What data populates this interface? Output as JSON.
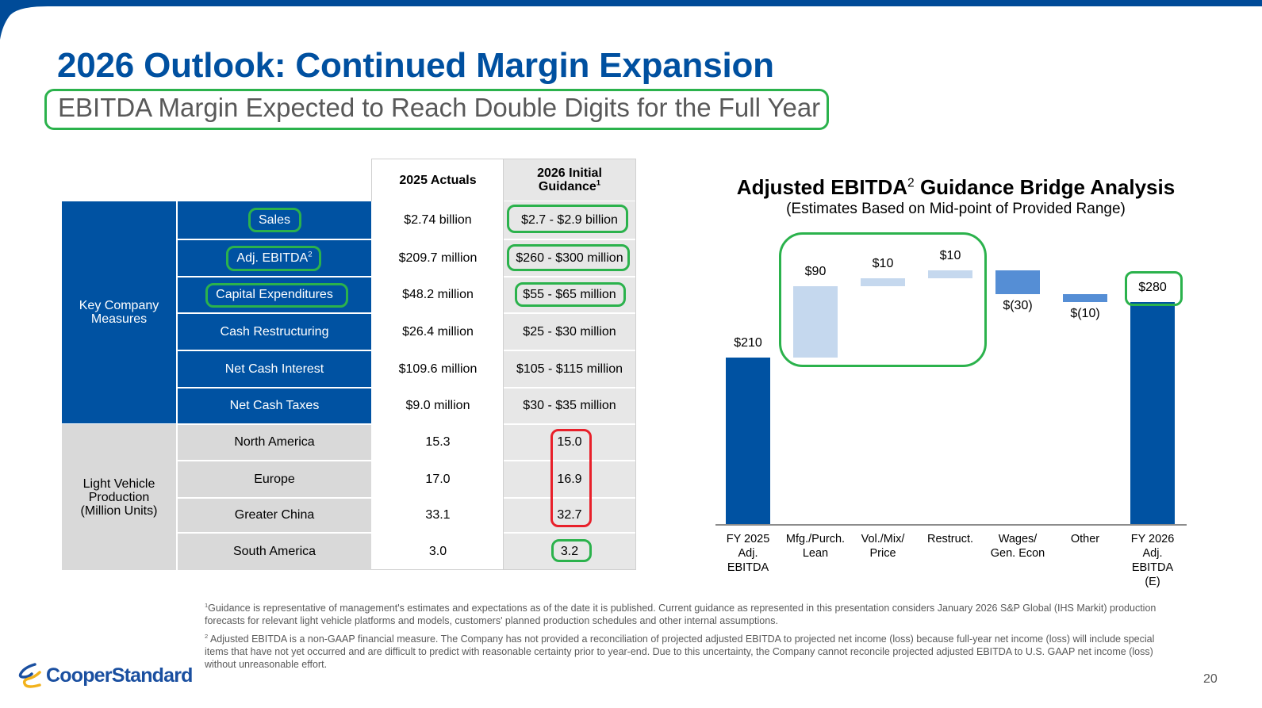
{
  "header": {
    "title": "2026 Outlook: Continued Margin Expansion",
    "subtitle": "EBITDA Margin Expected to Reach Double Digits for the Full Year"
  },
  "colors": {
    "brand_blue": "#0052a2",
    "highlight_green": "#2bb24c",
    "highlight_red": "#e8202a",
    "positive_bar": "#c5d8ee",
    "negative_bar": "#558ed5",
    "total_bar": "#0052a2"
  },
  "table": {
    "col_headers": [
      "2025 Actuals",
      "2026 Initial Guidance"
    ],
    "col_header_guidance_line1": "2026 Initial",
    "col_header_guidance_line2": "Guidance",
    "col_header_guidance_sup": "1",
    "groups": [
      {
        "label_line1": "Key Company",
        "label_line2": "Measures",
        "rows": [
          {
            "metric": "Sales",
            "actual": "$2.74 billion",
            "guidance": "$2.7 - $2.9 billion"
          },
          {
            "metric": "Adj. EBITDA",
            "metric_sup": "2",
            "actual": "$209.7 million",
            "guidance": "$260 - $300 million"
          },
          {
            "metric": "Capital Expenditures",
            "actual": "$48.2 million",
            "guidance": "$55 - $65 million"
          },
          {
            "metric": "Cash Restructuring",
            "actual": "$26.4 million",
            "guidance": "$25 - $30 million"
          },
          {
            "metric": "Net Cash Interest",
            "actual": "$109.6 million",
            "guidance": "$105 - $115 million"
          },
          {
            "metric": "Net Cash Taxes",
            "actual": "$9.0 million",
            "guidance": "$30 - $35 million"
          }
        ]
      },
      {
        "label_line1": "Light Vehicle",
        "label_line2": "Production",
        "label_line3": "(Million Units)",
        "rows": [
          {
            "metric": "North America",
            "actual": "15.3",
            "guidance": "15.0"
          },
          {
            "metric": "Europe",
            "actual": "17.0",
            "guidance": "16.9"
          },
          {
            "metric": "Greater China",
            "actual": "33.1",
            "guidance": "32.7"
          },
          {
            "metric": "South America",
            "actual": "3.0",
            "guidance": "3.2"
          }
        ]
      }
    ]
  },
  "chart_data": {
    "type": "bar",
    "subtype": "waterfall",
    "title": "Adjusted EBITDA",
    "title_sup": "2",
    "title_rest": " Guidance Bridge Analysis",
    "subtitle": "(Estimates Based on Mid-point of Provided Range)",
    "unit": "$ million",
    "ylim": [
      0,
      300
    ],
    "grid": false,
    "categories": [
      [
        "FY 2025",
        "Adj.",
        "EBITDA"
      ],
      [
        "Mfg./Purch.",
        "Lean"
      ],
      [
        "Vol./Mix/",
        "Price"
      ],
      [
        "Restruct."
      ],
      [
        "Wages/",
        "Gen. Econ"
      ],
      [
        "Other"
      ],
      [
        "FY 2026",
        "Adj.",
        "EBITDA",
        "(E)"
      ]
    ],
    "steps": [
      {
        "kind": "total",
        "value": 210,
        "label": "$210"
      },
      {
        "kind": "increase",
        "value": 90,
        "label": "$90"
      },
      {
        "kind": "increase",
        "value": 10,
        "label": "$10"
      },
      {
        "kind": "increase",
        "value": 10,
        "label": "$10"
      },
      {
        "kind": "decrease",
        "value": -30,
        "label": "$(30)"
      },
      {
        "kind": "decrease",
        "value": -10,
        "label": "$(10)"
      },
      {
        "kind": "total",
        "value": 280,
        "label": "$280"
      }
    ]
  },
  "footnotes": {
    "note1_sup": "1",
    "note1": "Guidance is representative of management's estimates and expectations as of the date it is published. Current guidance as represented in this presentation considers January 2026 S&P Global (IHS Markit) production forecasts for relevant light vehicle platforms and models, customers' planned production schedules and other internal assumptions.",
    "note2_sup": "2",
    "note2": " Adjusted EBITDA is a non-GAAP financial measure. The Company has not provided a reconciliation of projected adjusted EBITDA to projected net income (loss) because full-year net income (loss) will include special items that have not yet occurred and are difficult to predict with reasonable certainty prior to year-end. Due to this uncertainty, the Company cannot reconcile projected adjusted EBITDA to U.S. GAAP net income (loss) without unreasonable effort."
  },
  "logo": {
    "text": "CooperStandard"
  },
  "page_number": "20"
}
